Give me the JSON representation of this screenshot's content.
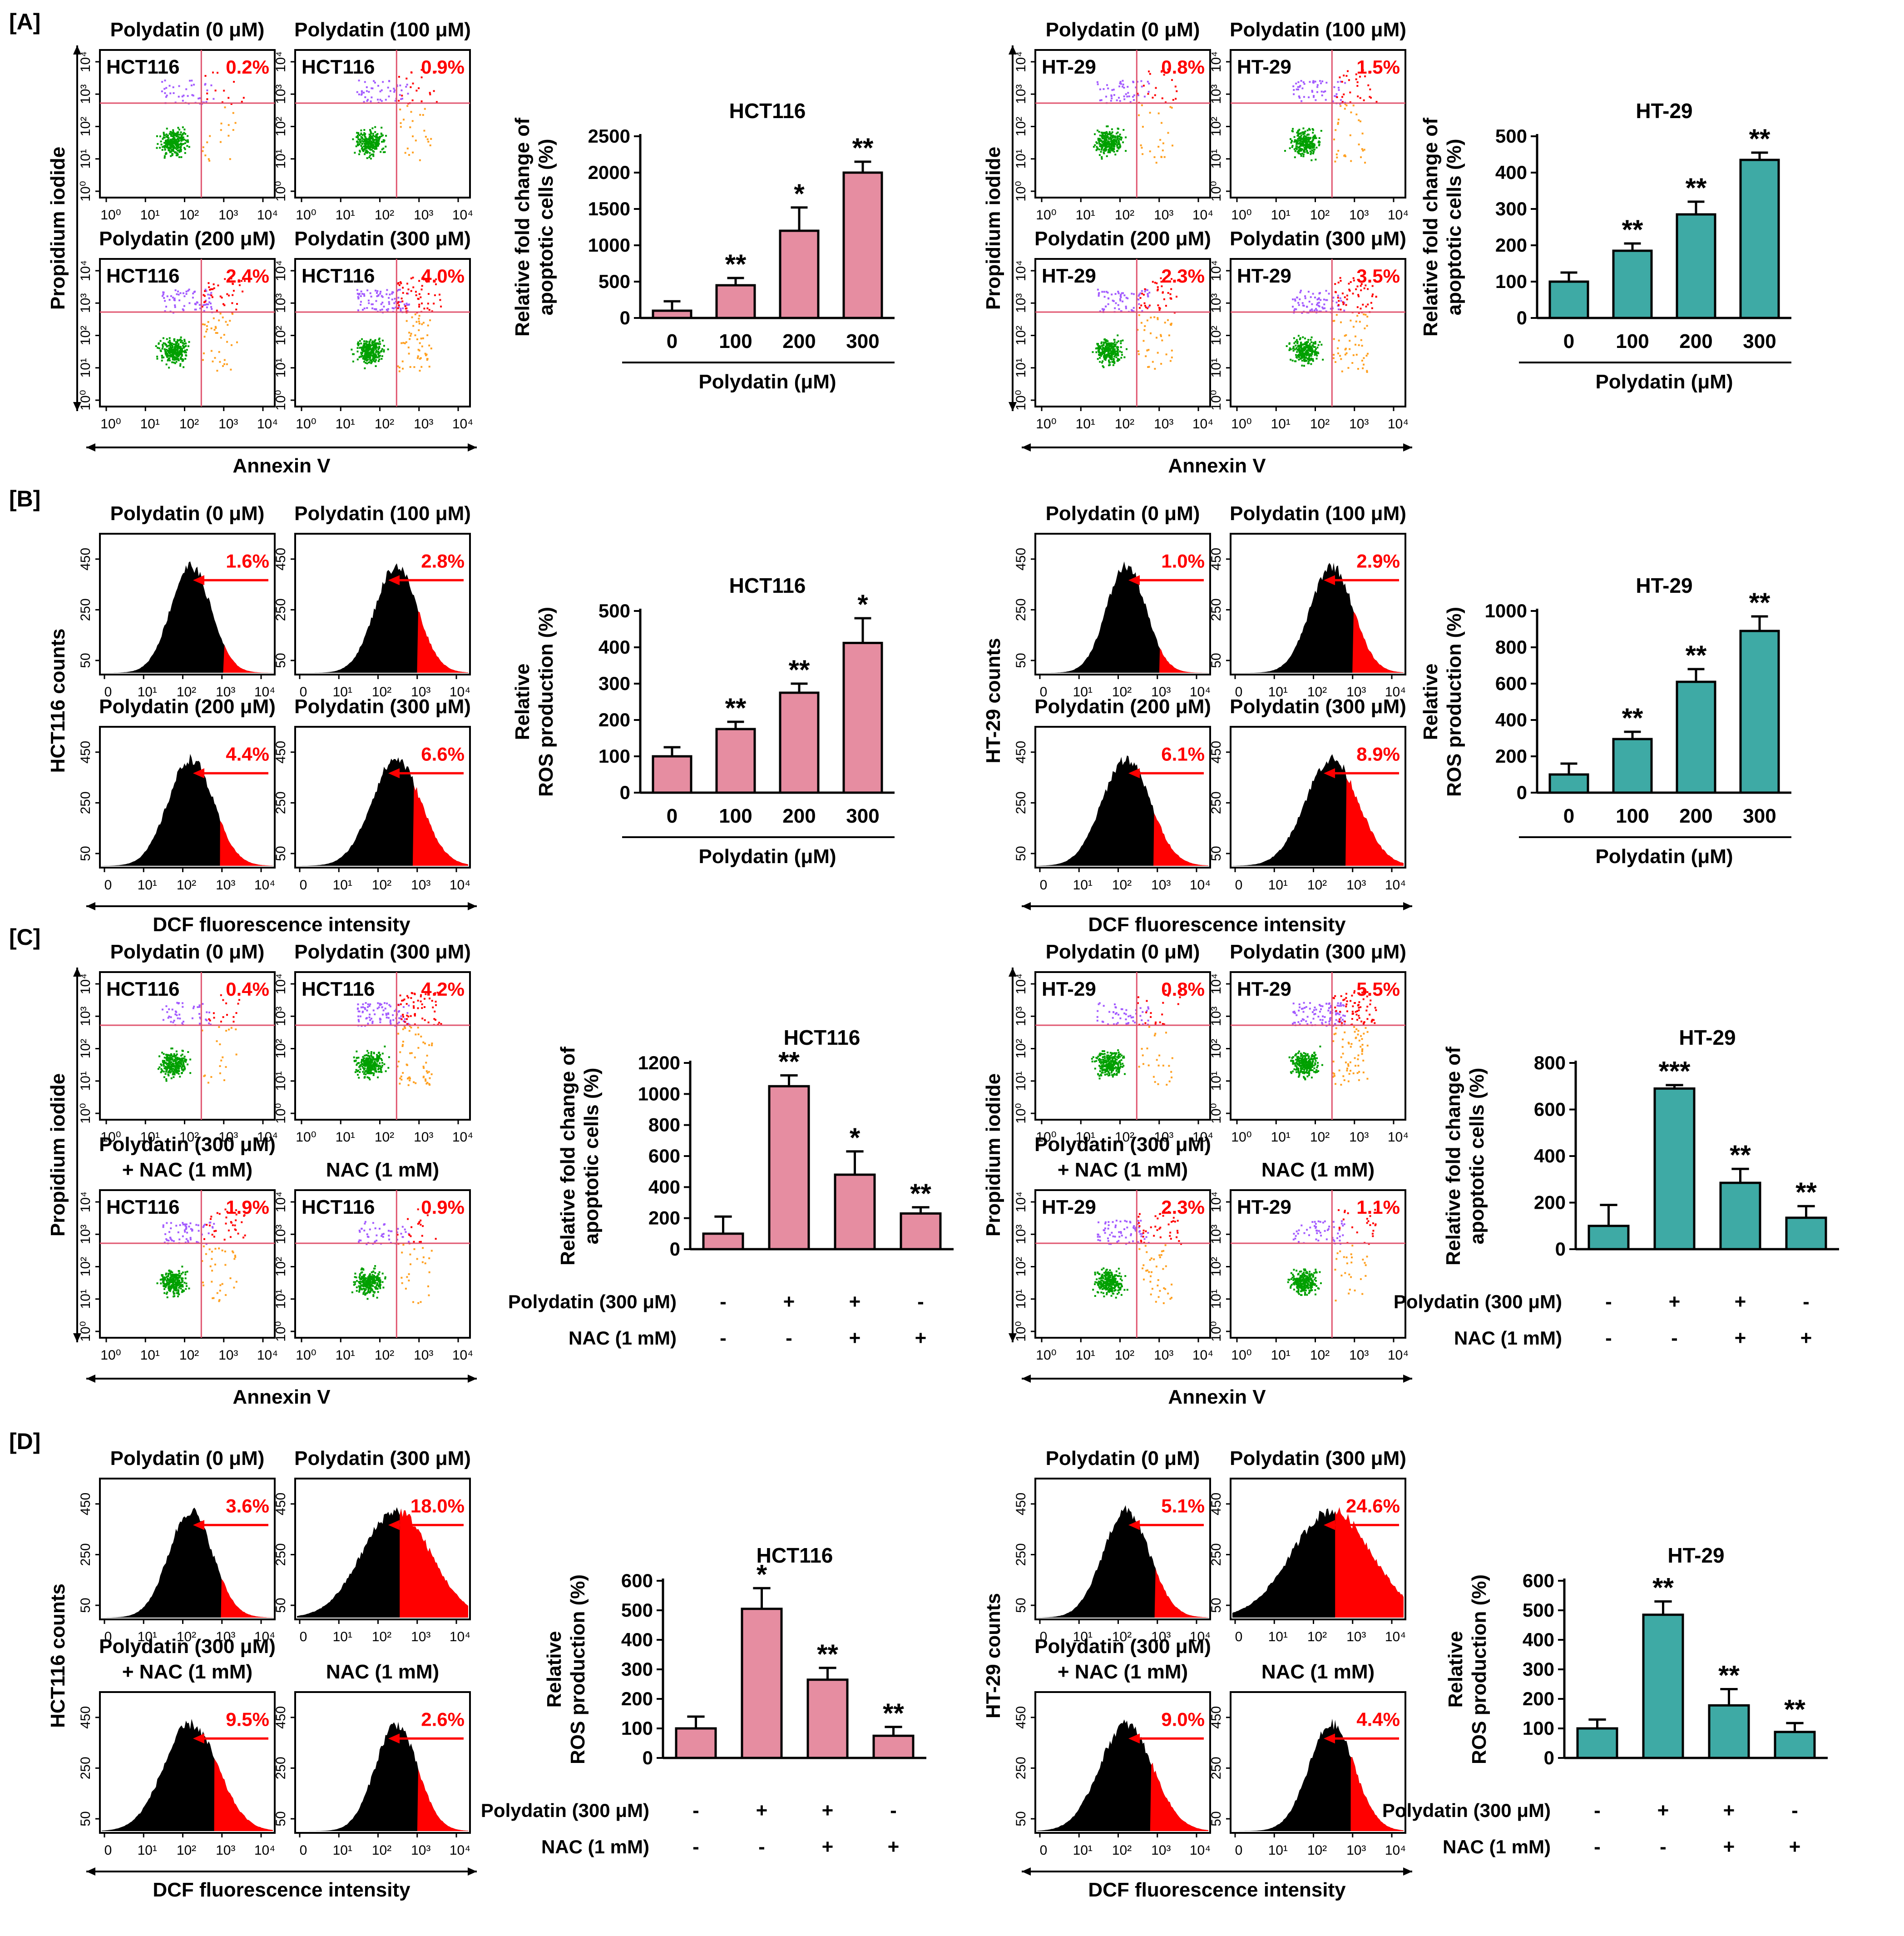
{
  "panel_labels": [
    "[A]",
    "[B]",
    "[C]",
    "[D]"
  ],
  "colors": {
    "pink": "#E68DA1",
    "teal": "#3EAAA5",
    "red": "#FF0000",
    "black": "#000000",
    "green": "#00A000",
    "purple": "#A35BFF",
    "orange": "#FFA020",
    "gate": "#E0556F"
  },
  "cell_lines": [
    "HCT116",
    "HT-29"
  ],
  "flow_axis": {
    "y_label": "Propidium iodide",
    "x_label": "Annexin V",
    "ticks": [
      "10⁰",
      "10¹",
      "10²",
      "10³",
      "10⁴"
    ]
  },
  "hist_axis": {
    "x_label": "DCF fluorescence intensity",
    "x_ticks": [
      "0",
      "10¹",
      "10²",
      "10³",
      "10⁴"
    ],
    "y_ticks": [
      "450",
      "250",
      "50"
    ],
    "y_label_hct": "HCT116 counts",
    "y_label_ht": "HT-29 counts"
  },
  "plot_titles": {
    "A": [
      "Polydatin (0 μM)",
      "Polydatin (100 μM)",
      "Polydatin (200 μM)",
      "Polydatin (300 μM)"
    ],
    "C": [
      "Polydatin (0 μM)",
      "Polydatin (300 μM)",
      "Polydatin (300 μM)",
      "NAC (1 mM)"
    ],
    "C_sub": "+ NAC (1 mM)"
  },
  "flow_pct": {
    "A_HCT116": [
      "0.2%",
      "0.9%",
      "2.4%",
      "4.0%"
    ],
    "A_HT29": [
      "0.8%",
      "1.5%",
      "2.3%",
      "3.5%"
    ],
    "C_HCT116": [
      "0.4%",
      "4.2%",
      "1.9%",
      "0.9%"
    ],
    "C_HT29": [
      "0.8%",
      "5.5%",
      "2.3%",
      "1.1%"
    ]
  },
  "hist_pct": {
    "B_HCT116": [
      "1.6%",
      "2.8%",
      "4.4%",
      "6.6%"
    ],
    "B_HT29": [
      "1.0%",
      "2.9%",
      "6.1%",
      "8.9%"
    ],
    "D_HCT116": [
      "3.6%",
      "18.0%",
      "9.5%",
      "2.6%"
    ],
    "D_HT29": [
      "5.1%",
      "24.6%",
      "9.0%",
      "4.4%"
    ]
  },
  "treatment_rows": {
    "row1": "Polydatin (300 μM)",
    "row2": "NAC (1 mM)",
    "row1_signs": [
      "-",
      "+",
      "+",
      "-"
    ],
    "row2_signs": [
      "-",
      "-",
      "+",
      "+"
    ]
  },
  "chart_data": [
    {
      "id": "A_HCT116",
      "type": "bar",
      "title": "HCT116",
      "ylabel": [
        "Relative fold change of",
        "apoptotic cells (%)"
      ],
      "xlabel": "Polydatin (μM)",
      "categories": [
        "0",
        "100",
        "200",
        "300"
      ],
      "values": [
        100,
        450,
        1200,
        2000
      ],
      "errors": [
        130,
        100,
        320,
        150
      ],
      "significance": [
        "",
        "**",
        "*",
        "**"
      ],
      "ylim": [
        0,
        2500
      ],
      "yticks": [
        0,
        500,
        1000,
        1500,
        2000,
        2500
      ],
      "color": "#E68DA1"
    },
    {
      "id": "A_HT29",
      "type": "bar",
      "title": "HT-29",
      "ylabel": [
        "Relative fold change of",
        "apoptotic cells (%)"
      ],
      "xlabel": "Polydatin (μM)",
      "categories": [
        "0",
        "100",
        "200",
        "300"
      ],
      "values": [
        100,
        185,
        285,
        435
      ],
      "errors": [
        25,
        20,
        35,
        20
      ],
      "significance": [
        "",
        "**",
        "**",
        "**"
      ],
      "ylim": [
        0,
        500
      ],
      "yticks": [
        0,
        100,
        200,
        300,
        400,
        500
      ],
      "color": "#3EAAA5"
    },
    {
      "id": "B_HCT116",
      "type": "bar",
      "title": "HCT116",
      "ylabel": [
        "Relative",
        "ROS production (%)"
      ],
      "xlabel": "Polydatin (μM)",
      "categories": [
        "0",
        "100",
        "200",
        "300"
      ],
      "values": [
        100,
        175,
        275,
        412
      ],
      "errors": [
        25,
        20,
        25,
        68
      ],
      "significance": [
        "",
        "**",
        "**",
        "*"
      ],
      "ylim": [
        0,
        500
      ],
      "yticks": [
        0,
        100,
        200,
        300,
        400,
        500
      ],
      "color": "#E68DA1"
    },
    {
      "id": "B_HT29",
      "type": "bar",
      "title": "HT-29",
      "ylabel": [
        "Relative",
        "ROS production (%)"
      ],
      "xlabel": "Polydatin (μM)",
      "categories": [
        "0",
        "100",
        "200",
        "300"
      ],
      "values": [
        100,
        295,
        610,
        890
      ],
      "errors": [
        60,
        40,
        70,
        80
      ],
      "significance": [
        "",
        "**",
        "**",
        "**"
      ],
      "ylim": [
        0,
        1000
      ],
      "yticks": [
        0,
        200,
        400,
        600,
        800,
        1000
      ],
      "color": "#3EAAA5"
    },
    {
      "id": "C_HCT116",
      "type": "bar",
      "title": "HCT116",
      "ylabel": [
        "Relative fold change of",
        "apoptotic cells (%)"
      ],
      "xlabel": "",
      "categories": [
        "",
        "",
        "",
        ""
      ],
      "values": [
        100,
        1050,
        480,
        230
      ],
      "errors": [
        110,
        70,
        150,
        40
      ],
      "significance": [
        "",
        "**",
        "*",
        "**"
      ],
      "ylim": [
        0,
        1200
      ],
      "yticks": [
        0,
        200,
        400,
        600,
        800,
        1000,
        1200
      ],
      "color": "#E68DA1",
      "treatment": true
    },
    {
      "id": "C_HT29",
      "type": "bar",
      "title": "HT-29",
      "ylabel": [
        "Relative fold change of",
        "apoptotic cells (%)"
      ],
      "xlabel": "",
      "categories": [
        "",
        "",
        "",
        ""
      ],
      "values": [
        100,
        690,
        285,
        135
      ],
      "errors": [
        90,
        15,
        60,
        50
      ],
      "significance": [
        "",
        "***",
        "**",
        "**"
      ],
      "ylim": [
        0,
        800
      ],
      "yticks": [
        0,
        200,
        400,
        600,
        800
      ],
      "color": "#3EAAA5",
      "treatment": true
    },
    {
      "id": "D_HCT116",
      "type": "bar",
      "title": "HCT116",
      "ylabel": [
        "Relative",
        "ROS production (%)"
      ],
      "xlabel": "",
      "categories": [
        "",
        "",
        "",
        ""
      ],
      "values": [
        100,
        505,
        265,
        75
      ],
      "errors": [
        40,
        70,
        40,
        30
      ],
      "significance": [
        "",
        "*",
        "**",
        "**"
      ],
      "ylim": [
        0,
        600
      ],
      "yticks": [
        0,
        100,
        200,
        300,
        400,
        500,
        600
      ],
      "color": "#E68DA1",
      "treatment": true
    },
    {
      "id": "D_HT29",
      "type": "bar",
      "title": "HT-29",
      "ylabel": [
        "Relative",
        "ROS production (%)"
      ],
      "xlabel": "",
      "categories": [
        "",
        "",
        "",
        ""
      ],
      "values": [
        100,
        485,
        178,
        88
      ],
      "errors": [
        30,
        45,
        55,
        30
      ],
      "significance": [
        "",
        "**",
        "**",
        "**"
      ],
      "ylim": [
        0,
        600
      ],
      "yticks": [
        0,
        100,
        200,
        300,
        400,
        500,
        600
      ],
      "color": "#3EAAA5",
      "treatment": true
    }
  ]
}
